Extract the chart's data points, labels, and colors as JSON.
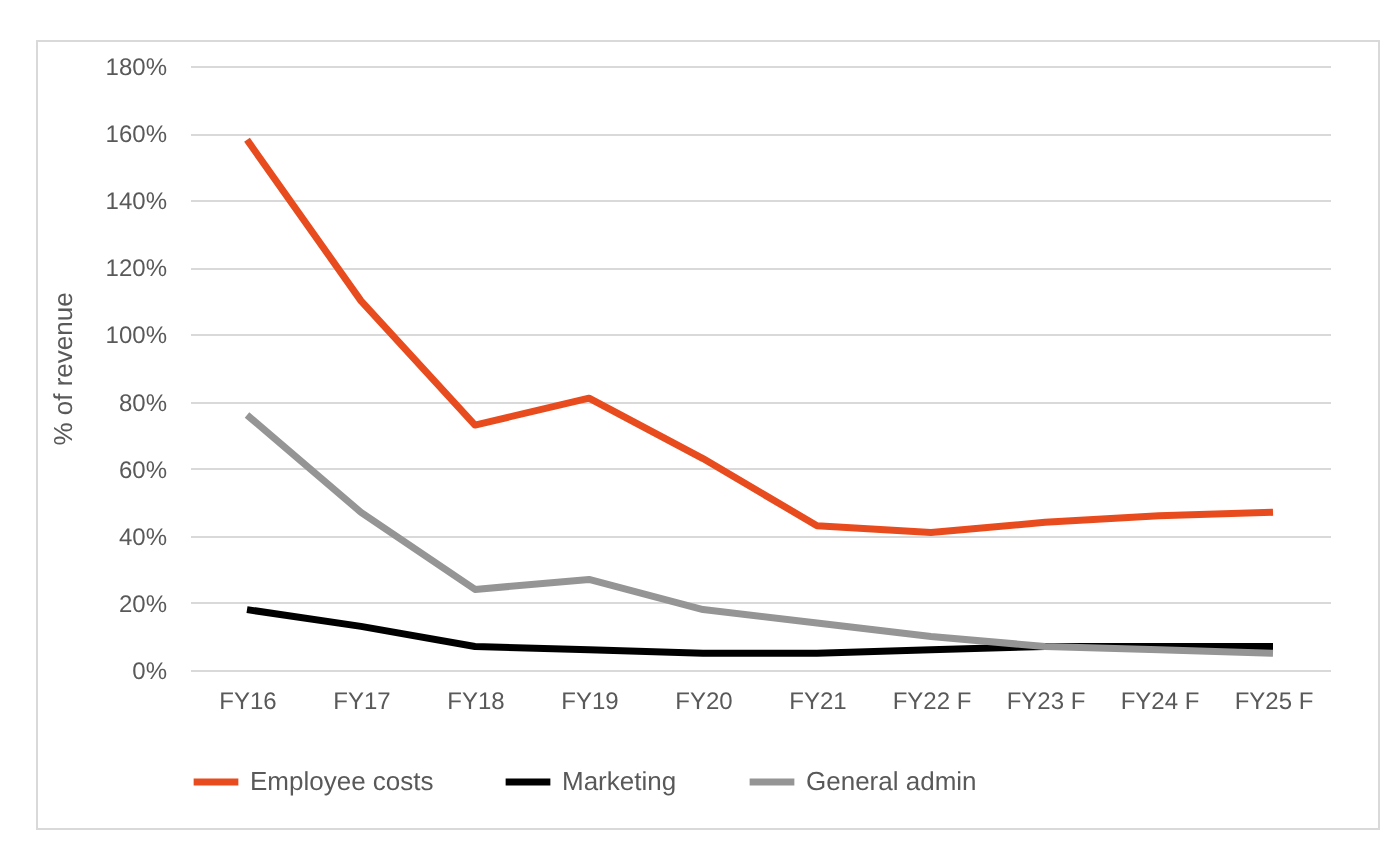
{
  "chart_data": {
    "type": "line",
    "ylabel": "% of revenue",
    "categories": [
      "FY16",
      "FY17",
      "FY18",
      "FY19",
      "FY20",
      "FY21",
      "FY22 F",
      "FY23 F",
      "FY24 F",
      "FY25 F"
    ],
    "series": [
      {
        "name": "Employee costs",
        "color": "#e84c1e",
        "values": [
          158,
          110,
          73,
          81,
          63,
          43,
          41,
          44,
          46,
          47
        ]
      },
      {
        "name": "Marketing",
        "color": "#000000",
        "values": [
          18,
          13,
          7,
          6,
          5,
          5,
          6,
          7,
          7,
          7
        ]
      },
      {
        "name": "General admin",
        "color": "#959595",
        "values": [
          76,
          47,
          24,
          27,
          18,
          14,
          10,
          7,
          6,
          5
        ]
      }
    ],
    "ylim": [
      0,
      180
    ],
    "yticks": [
      {
        "value": 0,
        "label": "0%"
      },
      {
        "value": 20,
        "label": "20%"
      },
      {
        "value": 40,
        "label": "40%"
      },
      {
        "value": 60,
        "label": "60%"
      },
      {
        "value": 80,
        "label": "80%"
      },
      {
        "value": 100,
        "label": "100%"
      },
      {
        "value": 120,
        "label": "120%"
      },
      {
        "value": 140,
        "label": "140%"
      },
      {
        "value": 160,
        "label": "160%"
      },
      {
        "value": 180,
        "label": "180%"
      }
    ],
    "grid": "y",
    "legend": "bottom",
    "marker": "none",
    "line_style": "solid"
  }
}
